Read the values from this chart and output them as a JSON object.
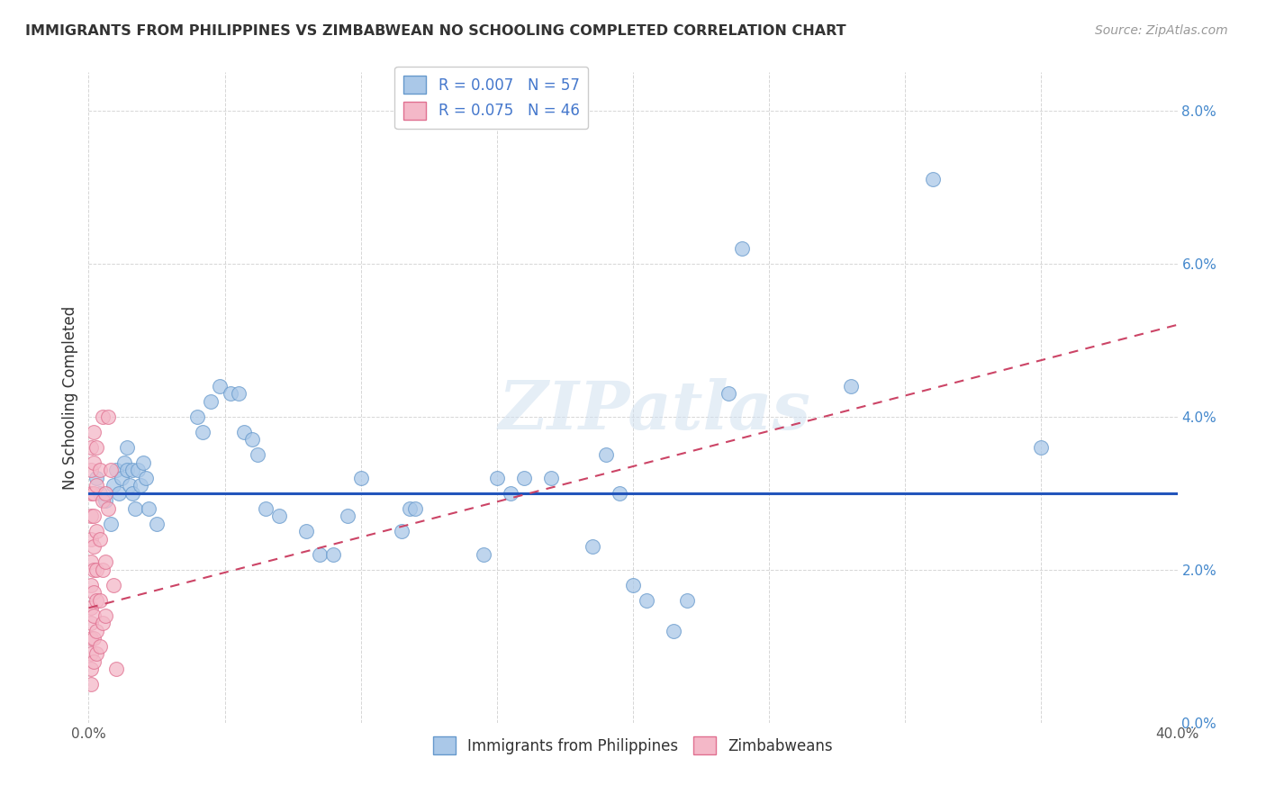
{
  "title": "IMMIGRANTS FROM PHILIPPINES VS ZIMBABWEAN NO SCHOOLING COMPLETED CORRELATION CHART",
  "source": "Source: ZipAtlas.com",
  "ylabel": "No Schooling Completed",
  "xlim": [
    0.0,
    0.4
  ],
  "ylim": [
    0.0,
    0.085
  ],
  "xticks": [
    0.0,
    0.05,
    0.1,
    0.15,
    0.2,
    0.25,
    0.3,
    0.35,
    0.4
  ],
  "yticks": [
    0.0,
    0.02,
    0.04,
    0.06,
    0.08
  ],
  "xtick_labels": [
    "0.0%",
    "",
    "",
    "",
    "",
    "",
    "",
    "",
    "40.0%"
  ],
  "ytick_labels_right": [
    "0.0%",
    "2.0%",
    "4.0%",
    "6.0%",
    "8.0%"
  ],
  "blue_dot_color": "#aac8e8",
  "blue_edge_color": "#6699cc",
  "pink_dot_color": "#f4b8c8",
  "pink_edge_color": "#e07090",
  "blue_line_color": "#2255bb",
  "pink_line_color": "#cc4466",
  "R_blue": 0.007,
  "N_blue": 57,
  "R_pink": 0.075,
  "N_pink": 46,
  "legend_blue_label": "Immigrants from Philippines",
  "legend_pink_label": "Zimbabweans",
  "watermark": "ZIPatlas",
  "blue_line_y": 0.03,
  "pink_line_x0": 0.0,
  "pink_line_y0": 0.015,
  "pink_line_x1": 0.4,
  "pink_line_y1": 0.052,
  "blue_scatter": [
    [
      0.003,
      0.032
    ],
    [
      0.004,
      0.03
    ],
    [
      0.006,
      0.029
    ],
    [
      0.008,
      0.026
    ],
    [
      0.009,
      0.031
    ],
    [
      0.01,
      0.033
    ],
    [
      0.011,
      0.03
    ],
    [
      0.012,
      0.032
    ],
    [
      0.013,
      0.034
    ],
    [
      0.014,
      0.036
    ],
    [
      0.014,
      0.033
    ],
    [
      0.015,
      0.031
    ],
    [
      0.016,
      0.033
    ],
    [
      0.016,
      0.03
    ],
    [
      0.017,
      0.028
    ],
    [
      0.018,
      0.033
    ],
    [
      0.019,
      0.031
    ],
    [
      0.02,
      0.034
    ],
    [
      0.021,
      0.032
    ],
    [
      0.022,
      0.028
    ],
    [
      0.025,
      0.026
    ],
    [
      0.04,
      0.04
    ],
    [
      0.042,
      0.038
    ],
    [
      0.045,
      0.042
    ],
    [
      0.048,
      0.044
    ],
    [
      0.052,
      0.043
    ],
    [
      0.055,
      0.043
    ],
    [
      0.057,
      0.038
    ],
    [
      0.06,
      0.037
    ],
    [
      0.062,
      0.035
    ],
    [
      0.065,
      0.028
    ],
    [
      0.07,
      0.027
    ],
    [
      0.08,
      0.025
    ],
    [
      0.085,
      0.022
    ],
    [
      0.09,
      0.022
    ],
    [
      0.095,
      0.027
    ],
    [
      0.1,
      0.032
    ],
    [
      0.115,
      0.025
    ],
    [
      0.118,
      0.028
    ],
    [
      0.12,
      0.028
    ],
    [
      0.145,
      0.022
    ],
    [
      0.15,
      0.032
    ],
    [
      0.155,
      0.03
    ],
    [
      0.16,
      0.032
    ],
    [
      0.17,
      0.032
    ],
    [
      0.185,
      0.023
    ],
    [
      0.19,
      0.035
    ],
    [
      0.195,
      0.03
    ],
    [
      0.2,
      0.018
    ],
    [
      0.205,
      0.016
    ],
    [
      0.215,
      0.012
    ],
    [
      0.22,
      0.016
    ],
    [
      0.235,
      0.043
    ],
    [
      0.24,
      0.062
    ],
    [
      0.28,
      0.044
    ],
    [
      0.31,
      0.071
    ],
    [
      0.35,
      0.036
    ]
  ],
  "pink_scatter": [
    [
      0.001,
      0.036
    ],
    [
      0.001,
      0.033
    ],
    [
      0.001,
      0.03
    ],
    [
      0.001,
      0.027
    ],
    [
      0.001,
      0.024
    ],
    [
      0.001,
      0.021
    ],
    [
      0.001,
      0.018
    ],
    [
      0.001,
      0.015
    ],
    [
      0.001,
      0.013
    ],
    [
      0.001,
      0.011
    ],
    [
      0.001,
      0.009
    ],
    [
      0.001,
      0.007
    ],
    [
      0.001,
      0.005
    ],
    [
      0.002,
      0.038
    ],
    [
      0.002,
      0.034
    ],
    [
      0.002,
      0.03
    ],
    [
      0.002,
      0.027
    ],
    [
      0.002,
      0.023
    ],
    [
      0.002,
      0.02
    ],
    [
      0.002,
      0.017
    ],
    [
      0.002,
      0.014
    ],
    [
      0.002,
      0.011
    ],
    [
      0.002,
      0.008
    ],
    [
      0.003,
      0.036
    ],
    [
      0.003,
      0.031
    ],
    [
      0.003,
      0.025
    ],
    [
      0.003,
      0.02
    ],
    [
      0.003,
      0.016
    ],
    [
      0.003,
      0.012
    ],
    [
      0.003,
      0.009
    ],
    [
      0.004,
      0.033
    ],
    [
      0.004,
      0.024
    ],
    [
      0.004,
      0.016
    ],
    [
      0.004,
      0.01
    ],
    [
      0.005,
      0.04
    ],
    [
      0.005,
      0.029
    ],
    [
      0.005,
      0.02
    ],
    [
      0.005,
      0.013
    ],
    [
      0.006,
      0.03
    ],
    [
      0.006,
      0.021
    ],
    [
      0.006,
      0.014
    ],
    [
      0.007,
      0.04
    ],
    [
      0.007,
      0.028
    ],
    [
      0.008,
      0.033
    ],
    [
      0.009,
      0.018
    ],
    [
      0.01,
      0.007
    ]
  ]
}
